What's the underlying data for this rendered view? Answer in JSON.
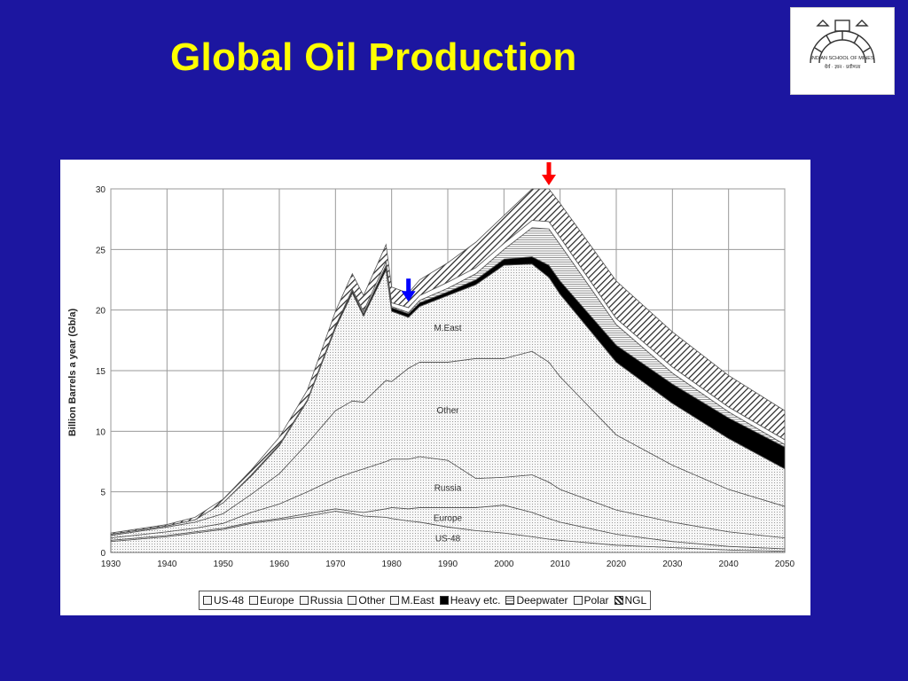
{
  "slide": {
    "title": "Global Oil Production",
    "background": "#1c16a0",
    "title_color": "#ffff00",
    "logo_text": "INDIAN SCHOOL OF MINES"
  },
  "chart_data": {
    "type": "area",
    "stacked": true,
    "ylabel": "Billion Barrels a year (Gb/a)",
    "xlabel": "",
    "xlim": [
      1930,
      2050
    ],
    "ylim": [
      0,
      30
    ],
    "x_ticks": [
      1930,
      1940,
      1950,
      1960,
      1970,
      1980,
      1990,
      2000,
      2010,
      2020,
      2030,
      2040,
      2050
    ],
    "y_ticks": [
      0,
      5,
      10,
      15,
      20,
      25,
      30
    ],
    "grid": true,
    "legend_position": "bottom",
    "x": [
      1930,
      1940,
      1945,
      1950,
      1955,
      1960,
      1965,
      1970,
      1973,
      1975,
      1979,
      1980,
      1983,
      1985,
      1990,
      1995,
      2000,
      2005,
      2008,
      2010,
      2020,
      2030,
      2040,
      2050
    ],
    "series": [
      {
        "name": "US-48",
        "color": "#e6e6e6",
        "values": [
          0.9,
          1.3,
          1.6,
          1.9,
          2.4,
          2.7,
          3.0,
          3.4,
          3.2,
          3.0,
          2.9,
          2.8,
          2.6,
          2.5,
          2.1,
          1.8,
          1.6,
          1.3,
          1.1,
          1.0,
          0.6,
          0.4,
          0.2,
          0.1
        ]
      },
      {
        "name": "Europe",
        "color": "#efefef",
        "values": [
          0.1,
          0.1,
          0.1,
          0.1,
          0.1,
          0.1,
          0.2,
          0.2,
          0.2,
          0.3,
          0.7,
          0.9,
          1.0,
          1.2,
          1.6,
          1.9,
          2.3,
          2.0,
          1.7,
          1.5,
          0.9,
          0.5,
          0.3,
          0.2
        ]
      },
      {
        "name": "Russia",
        "color": "#f4f4f4",
        "values": [
          0.2,
          0.3,
          0.3,
          0.4,
          0.8,
          1.2,
          1.8,
          2.5,
          3.2,
          3.6,
          3.9,
          4.0,
          4.1,
          4.2,
          3.9,
          2.4,
          2.3,
          3.1,
          3.0,
          2.7,
          2.0,
          1.6,
          1.2,
          0.9
        ]
      },
      {
        "name": "Other",
        "color": "#e9e9e9",
        "values": [
          0.2,
          0.4,
          0.5,
          0.8,
          1.5,
          2.5,
          4.0,
          5.6,
          5.9,
          5.5,
          6.7,
          6.4,
          7.5,
          7.8,
          8.1,
          9.9,
          9.8,
          10.2,
          9.9,
          9.3,
          6.2,
          4.7,
          3.5,
          2.6
        ]
      },
      {
        "name": "M.East",
        "color": "#f2f2f2",
        "values": [
          0.1,
          0.1,
          0.2,
          0.9,
          1.5,
          2.3,
          3.5,
          6.8,
          8.9,
          7.1,
          9.1,
          5.8,
          4.2,
          4.6,
          5.5,
          6.1,
          7.7,
          7.2,
          7.0,
          6.8,
          6.0,
          5.1,
          4.2,
          3.1
        ]
      },
      {
        "name": "Heavy etc.",
        "color": "#000000",
        "values": [
          0,
          0,
          0,
          0,
          0.1,
          0.1,
          0.1,
          0.2,
          0.2,
          0.2,
          0.3,
          0.3,
          0.3,
          0.3,
          0.3,
          0.4,
          0.5,
          0.6,
          1.0,
          1.1,
          1.4,
          1.6,
          1.7,
          1.8
        ]
      },
      {
        "name": "Deepwater",
        "color": "#c8c8c8",
        "values": [
          0,
          0,
          0,
          0,
          0,
          0,
          0,
          0,
          0,
          0,
          0.1,
          0.1,
          0.1,
          0.2,
          0.3,
          0.5,
          0.8,
          2.4,
          3.0,
          3.0,
          1.7,
          0.9,
          0.5,
          0.2
        ]
      },
      {
        "name": "Polar",
        "color": "#fbfbfb",
        "values": [
          0,
          0,
          0,
          0,
          0,
          0,
          0,
          0,
          0.1,
          0.2,
          0.3,
          0.3,
          0.4,
          0.4,
          0.5,
          0.5,
          0.5,
          0.6,
          0.6,
          0.6,
          0.5,
          0.5,
          0.4,
          0.4
        ]
      },
      {
        "name": "NGL",
        "color": "#6e6e6e",
        "values": [
          0.1,
          0.1,
          0.2,
          0.3,
          0.4,
          0.6,
          0.8,
          1.2,
          1.3,
          1.3,
          1.4,
          1.3,
          1.2,
          1.3,
          1.6,
          2.1,
          2.3,
          2.6,
          2.7,
          2.8,
          3.1,
          2.9,
          2.6,
          2.4
        ]
      }
    ],
    "annotations": [
      {
        "text": "M.East",
        "x": 1990,
        "y": 18.3
      },
      {
        "text": "Other",
        "x": 1990,
        "y": 11.5
      },
      {
        "text": "Russia",
        "x": 1990,
        "y": 5.1
      },
      {
        "text": "Europe",
        "x": 1990,
        "y": 2.6
      },
      {
        "text": "US-48",
        "x": 1990,
        "y": 0.9
      }
    ],
    "arrows": [
      {
        "color": "#ff0000",
        "x": 2008,
        "y": 30
      },
      {
        "color": "#0000ff",
        "x": 1983,
        "y": 20.4
      }
    ]
  }
}
